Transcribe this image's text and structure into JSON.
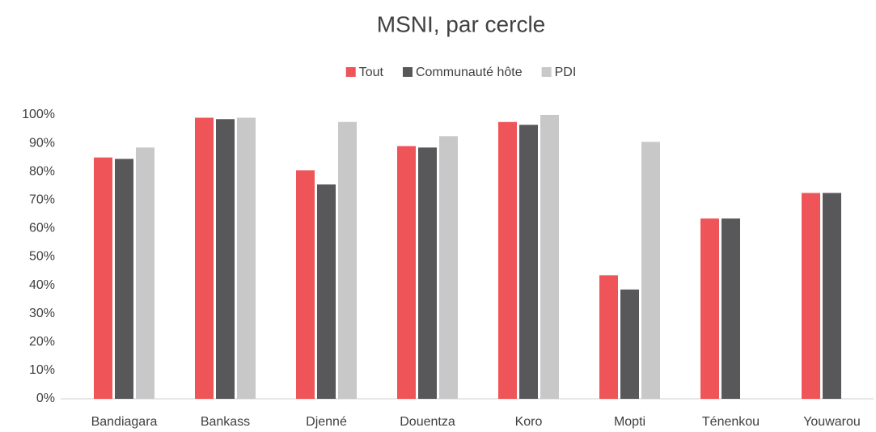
{
  "chart_data": {
    "type": "bar",
    "title": "MSNI, par cercle",
    "categories": [
      "Bandiagara",
      "Bankass",
      "Djenné",
      "Douentza",
      "Koro",
      "Mopti",
      "Ténenkou",
      "Youwarou"
    ],
    "series": [
      {
        "name": "Tout",
        "color": "#ef5558",
        "values": [
          85,
          99,
          80.5,
          89,
          97.5,
          43.5,
          63.5,
          72.5
        ]
      },
      {
        "name": "Communauté hôte",
        "color": "#58585a",
        "values": [
          84.5,
          98.5,
          75.5,
          88.5,
          96.5,
          38.5,
          63.5,
          72.5
        ]
      },
      {
        "name": "PDI",
        "color": "#c8c8c8",
        "values": [
          88.5,
          99,
          97.5,
          92.5,
          100,
          90.5,
          null,
          null
        ]
      }
    ],
    "ylim": [
      0,
      100
    ],
    "yticks": [
      {
        "value": 0,
        "label": "0%"
      },
      {
        "value": 10,
        "label": "10%"
      },
      {
        "value": 20,
        "label": "20%"
      },
      {
        "value": 30,
        "label": "30%"
      },
      {
        "value": 40,
        "label": "40%"
      },
      {
        "value": 50,
        "label": "50%"
      },
      {
        "value": 60,
        "label": "60%"
      },
      {
        "value": 70,
        "label": "70%"
      },
      {
        "value": 80,
        "label": "80%"
      },
      {
        "value": 90,
        "label": "90%"
      },
      {
        "value": 100,
        "label": "100%"
      }
    ],
    "legend": "top",
    "grid": false
  }
}
